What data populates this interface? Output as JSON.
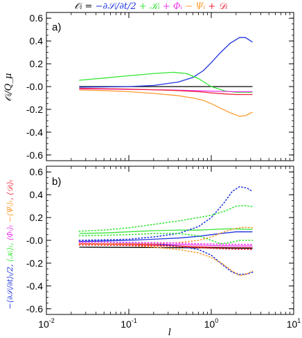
{
  "colors": {
    "blue": "#1f33dd",
    "green": "#33e633",
    "magenta": "#ee33ee",
    "orange": "#ff9a2e",
    "red": "#ee2233",
    "black": "#000000"
  },
  "title": {
    "lhs": "𝒪ᵢ = ",
    "term_blue": "−∂𝒮ᵢ/∂t/2",
    "term_green": " + 𝒦ᵢ",
    "term_magenta": " + 𝛷ᵢ",
    "term_orange": " − 𝛹ᵢ",
    "term_red": " + 𝒟ᵢ"
  },
  "x_label": "l",
  "panel_a": {
    "label": "a)",
    "ylabel": "𝒪ᵢ/Q_μ"
  },
  "panel_b": {
    "label": "b)",
    "ylabel_parts": [
      {
        "text": "−⟨∂𝒮ᵢ/∂t⟩ₜ/2,",
        "color_key": "blue"
      },
      {
        "text": " ⟨𝒦ᵢ⟩ₜ,",
        "color_key": "green"
      },
      {
        "text": " ⟨𝛷ᵢ⟩ₜ",
        "color_key": "magenta"
      },
      {
        "text": "  −⟨𝛹ᵢ⟩ₜ",
        "color_key": "orange"
      },
      {
        "text": ",  ⟨𝒟ᵢ⟩ₜ",
        "color_key": "red"
      }
    ]
  },
  "chart_data": [
    {
      "type": "line",
      "panel": "a)",
      "x_scale": "log",
      "xlim": [
        0.01,
        10
      ],
      "ylim": [
        -0.65,
        0.65
      ],
      "x_ticks": [
        {
          "base": "10",
          "exp": "-2"
        },
        {
          "base": "10",
          "exp": "-1"
        },
        {
          "base": "10",
          "exp": "0"
        },
        {
          "base": "10",
          "exp": "1"
        }
      ],
      "y_ticks": [
        "-0.6",
        "-0.4",
        "-0.2",
        "-0.0",
        "0.2",
        "0.4",
        "0.6"
      ],
      "series": [
        {
          "color_key": "black",
          "style": "solid",
          "x": [
            0.025,
            0.1,
            0.3,
            1.0,
            2.0,
            3.16
          ],
          "y": [
            0.0,
            0.0,
            0.0,
            0.0,
            0.0,
            0.0
          ]
        },
        {
          "color_key": "blue",
          "style": "solid",
          "x": [
            0.025,
            0.05,
            0.1,
            0.2,
            0.4,
            0.6,
            0.8,
            1.0,
            1.3,
            1.7,
            2.2,
            2.6,
            3.16
          ],
          "y": [
            -0.005,
            -0.003,
            0.0,
            0.01,
            0.04,
            0.08,
            0.14,
            0.21,
            0.3,
            0.38,
            0.43,
            0.43,
            0.39
          ]
        },
        {
          "color_key": "green",
          "style": "solid",
          "x": [
            0.025,
            0.05,
            0.1,
            0.2,
            0.35,
            0.5,
            0.7,
            1.0,
            1.5,
            2.0,
            3.16
          ],
          "y": [
            0.055,
            0.075,
            0.095,
            0.115,
            0.125,
            0.115,
            0.07,
            0.0,
            -0.04,
            -0.05,
            -0.05
          ]
        },
        {
          "color_key": "magenta",
          "style": "solid",
          "x": [
            0.025,
            0.05,
            0.1,
            0.3,
            0.6,
            1.0,
            2.0,
            3.16
          ],
          "y": [
            -0.02,
            -0.022,
            -0.025,
            -0.03,
            -0.035,
            -0.04,
            -0.045,
            -0.045
          ]
        },
        {
          "color_key": "red",
          "style": "solid",
          "x": [
            0.025,
            0.05,
            0.1,
            0.2,
            0.4,
            0.7,
            1.0,
            1.5,
            2.0,
            3.16
          ],
          "y": [
            -0.015,
            -0.018,
            -0.022,
            -0.028,
            -0.035,
            -0.045,
            -0.055,
            -0.065,
            -0.07,
            -0.07
          ]
        },
        {
          "color_key": "orange",
          "style": "solid",
          "x": [
            0.025,
            0.05,
            0.1,
            0.2,
            0.4,
            0.6,
            0.8,
            1.0,
            1.3,
            1.7,
            2.2,
            2.6,
            3.16
          ],
          "y": [
            -0.03,
            -0.035,
            -0.045,
            -0.06,
            -0.08,
            -0.1,
            -0.12,
            -0.15,
            -0.19,
            -0.23,
            -0.26,
            -0.255,
            -0.225
          ]
        }
      ]
    },
    {
      "type": "line",
      "panel": "b)",
      "x_scale": "log",
      "xlim": [
        0.01,
        10
      ],
      "ylim": [
        -0.65,
        0.65
      ],
      "x_ticks": [
        {
          "base": "10",
          "exp": "-2"
        },
        {
          "base": "10",
          "exp": "-1"
        },
        {
          "base": "10",
          "exp": "0"
        },
        {
          "base": "10",
          "exp": "1"
        }
      ],
      "y_ticks": [
        "-0.6",
        "-0.4",
        "-0.2",
        "-0.0",
        "0.2",
        "0.4",
        "0.6"
      ],
      "series": [
        {
          "color_key": "blue",
          "style": "solid",
          "x": [
            0.025,
            0.05,
            0.1,
            0.2,
            0.4,
            0.7,
            1.0,
            1.5,
            2.0,
            3.16
          ],
          "y": [
            -0.01,
            -0.005,
            0.0,
            0.01,
            0.02,
            0.035,
            0.05,
            0.065,
            0.075,
            0.075
          ]
        },
        {
          "color_key": "green",
          "style": "solid",
          "x": [
            0.025,
            0.05,
            0.1,
            0.2,
            0.4,
            0.7,
            1.0,
            1.5,
            2.0,
            3.16
          ],
          "y": [
            0.06,
            0.065,
            0.075,
            0.085,
            0.09,
            0.09,
            0.095,
            0.1,
            0.1,
            0.095
          ]
        },
        {
          "color_key": "magenta",
          "style": "solid",
          "x": [
            0.025,
            0.05,
            0.1,
            0.3,
            0.6,
            1.0,
            2.0,
            3.16
          ],
          "y": [
            -0.025,
            -0.03,
            -0.03,
            -0.035,
            -0.04,
            -0.045,
            -0.05,
            -0.05
          ]
        },
        {
          "color_key": "red",
          "style": "solid",
          "x": [
            0.025,
            0.05,
            0.1,
            0.3,
            0.6,
            1.0,
            2.0,
            3.16
          ],
          "y": [
            -0.03,
            -0.032,
            -0.035,
            -0.045,
            -0.055,
            -0.06,
            -0.065,
            -0.065
          ]
        },
        {
          "color_key": "black",
          "style": "solid",
          "x": [
            0.025,
            0.1,
            0.3,
            1.0,
            2.0,
            3.16
          ],
          "y": [
            -0.06,
            -0.062,
            -0.064,
            -0.066,
            -0.068,
            -0.07
          ]
        },
        {
          "color_key": "blue",
          "style": "dotted",
          "x": [
            0.025,
            0.05,
            0.1,
            0.2,
            0.4,
            0.7,
            1.0,
            1.4,
            1.8,
            2.2,
            2.7,
            3.16
          ],
          "y": [
            0.0,
            0.005,
            0.01,
            0.03,
            0.06,
            0.12,
            0.2,
            0.32,
            0.43,
            0.47,
            0.46,
            0.43
          ]
        },
        {
          "color_key": "blue",
          "style": "dotted",
          "x": [
            0.025,
            0.05,
            0.1,
            0.2,
            0.4,
            0.7,
            1.0,
            1.4,
            1.8,
            2.2,
            2.7,
            3.16
          ],
          "y": [
            -0.01,
            -0.015,
            -0.02,
            -0.03,
            -0.05,
            -0.08,
            -0.13,
            -0.22,
            -0.28,
            -0.3,
            -0.295,
            -0.28
          ]
        },
        {
          "color_key": "green",
          "style": "dotted",
          "x": [
            0.025,
            0.05,
            0.1,
            0.2,
            0.4,
            0.7,
            1.0,
            1.5,
            2.0,
            2.5,
            3.16
          ],
          "y": [
            0.08,
            0.09,
            0.11,
            0.14,
            0.17,
            0.2,
            0.22,
            0.26,
            0.3,
            0.305,
            0.295
          ]
        },
        {
          "color_key": "green",
          "style": "dotted",
          "x": [
            0.025,
            0.05,
            0.1,
            0.2,
            0.4,
            0.7,
            1.0,
            1.3,
            1.7,
            2.2,
            3.16
          ],
          "y": [
            0.04,
            0.045,
            0.05,
            0.06,
            0.06,
            0.04,
            0.0,
            -0.03,
            -0.02,
            0.0,
            0.0
          ]
        },
        {
          "color_key": "orange",
          "style": "dotted",
          "x": [
            0.025,
            0.05,
            0.1,
            0.2,
            0.4,
            0.7,
            1.0,
            1.4,
            1.8,
            2.2,
            2.6,
            3.16
          ],
          "y": [
            -0.03,
            -0.035,
            -0.045,
            -0.06,
            -0.08,
            -0.11,
            -0.15,
            -0.21,
            -0.27,
            -0.31,
            -0.3,
            -0.27
          ]
        },
        {
          "color_key": "orange",
          "style": "dotted",
          "x": [
            0.025,
            0.05,
            0.1,
            0.2,
            0.4,
            0.7,
            1.0,
            1.5,
            2.0,
            2.5,
            3.16
          ],
          "y": [
            -0.03,
            -0.03,
            -0.03,
            -0.03,
            -0.02,
            0.0,
            0.03,
            0.08,
            0.105,
            0.115,
            0.11
          ]
        },
        {
          "color_key": "magenta",
          "style": "dotted",
          "x": [
            0.025,
            0.05,
            0.1,
            0.3,
            0.6,
            1.0,
            2.0,
            3.16
          ],
          "y": [
            -0.015,
            -0.015,
            -0.018,
            -0.022,
            -0.028,
            -0.032,
            -0.035,
            -0.035
          ]
        },
        {
          "color_key": "red",
          "style": "dotted",
          "x": [
            0.025,
            0.05,
            0.1,
            0.3,
            0.6,
            1.0,
            2.0,
            3.16
          ],
          "y": [
            -0.04,
            -0.042,
            -0.045,
            -0.05,
            -0.06,
            -0.07,
            -0.078,
            -0.08
          ]
        }
      ]
    }
  ]
}
